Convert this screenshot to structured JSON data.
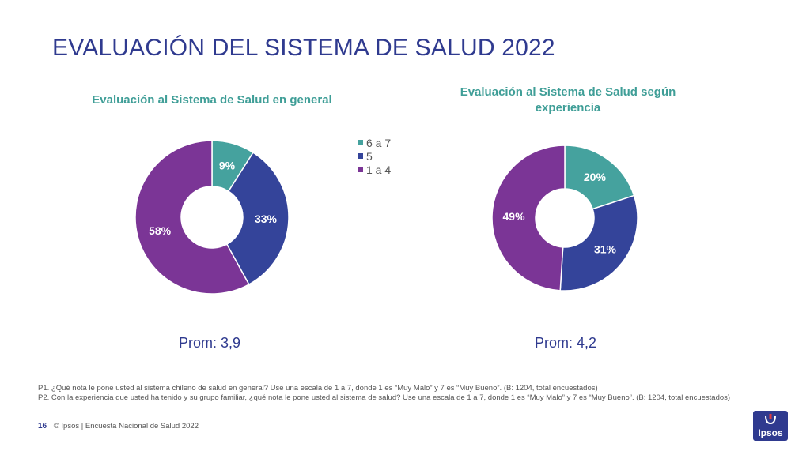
{
  "page": {
    "title": "EVALUACIÓN DEL SISTEMA DE SALUD 2022"
  },
  "colors": {
    "s1": "#45a29e",
    "s2": "#34449a",
    "s3": "#7b3596",
    "accent": "#2f3a8f"
  },
  "legend": {
    "items": [
      "6 a 7",
      "5",
      "1 a 4"
    ]
  },
  "chart_data": [
    {
      "type": "pie",
      "title": "Evaluación al Sistema de Salud en general",
      "categories": [
        "6 a 7",
        "5",
        "1 a 4"
      ],
      "values": [
        9,
        33,
        58
      ],
      "labels": [
        "9%",
        "33%",
        "58%"
      ],
      "legend_position": "right",
      "summary": "Prom: 3,9"
    },
    {
      "type": "pie",
      "title": "Evaluación al Sistema de Salud según experiencia",
      "categories": [
        "6 a 7",
        "5",
        "1 a 4"
      ],
      "values": [
        20,
        31,
        49
      ],
      "labels": [
        "20%",
        "31%",
        "49%"
      ],
      "summary": "Prom: 4,2"
    }
  ],
  "footnotes": [
    "P1. ¿Qué nota le pone usted al sistema chileno de salud en general? Use una escala de 1 a 7, donde 1 es “Muy Malo” y 7 es “Muy Bueno”. (B: 1204, total encuestados)",
    "P2. Con la experiencia que usted ha tenido y su grupo familiar, ¿qué nota le pone usted al sistema de salud? Use una escala de 1 a 7, donde 1 es “Muy Malo” y 7 es “Muy Bueno”. (B: 1204, total encuestados)"
  ],
  "footer": {
    "page_number": "16",
    "text": "© Ipsos | Encuesta Nacional de Salud 2022"
  },
  "logo": {
    "text": "Ipsos"
  }
}
